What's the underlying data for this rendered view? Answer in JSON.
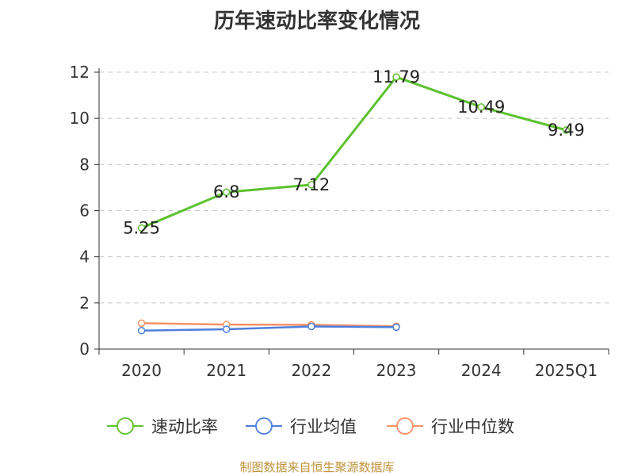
{
  "title": "历年速动比率变化情况",
  "source": "制图数据来自恒生聚源数据库",
  "chart_data": {
    "type": "line",
    "title": "历年速动比率变化情况",
    "categories": [
      "2020",
      "2021",
      "2022",
      "2023",
      "2024",
      "2025Q1"
    ],
    "ylim": [
      0,
      12
    ],
    "yticks": [
      0,
      2,
      4,
      6,
      8,
      10,
      12
    ],
    "grid": true,
    "legend_position": "bottom",
    "series": [
      {
        "name": "速动比率",
        "color": "#5cc22e",
        "values": [
          5.25,
          6.8,
          7.12,
          11.79,
          10.49,
          9.49
        ],
        "labels": [
          "5.25",
          "6.8",
          "7.12",
          "11.79",
          "10.49",
          "9.49"
        ],
        "show_labels": true
      },
      {
        "name": "行业均值",
        "color": "#4f7fdc",
        "values": [
          0.8,
          0.86,
          0.98,
          0.95,
          null,
          null
        ],
        "show_labels": false
      },
      {
        "name": "行业中位数",
        "color": "#f79266",
        "values": [
          1.12,
          1.06,
          1.05,
          0.99,
          null,
          null
        ],
        "show_labels": false
      }
    ]
  }
}
